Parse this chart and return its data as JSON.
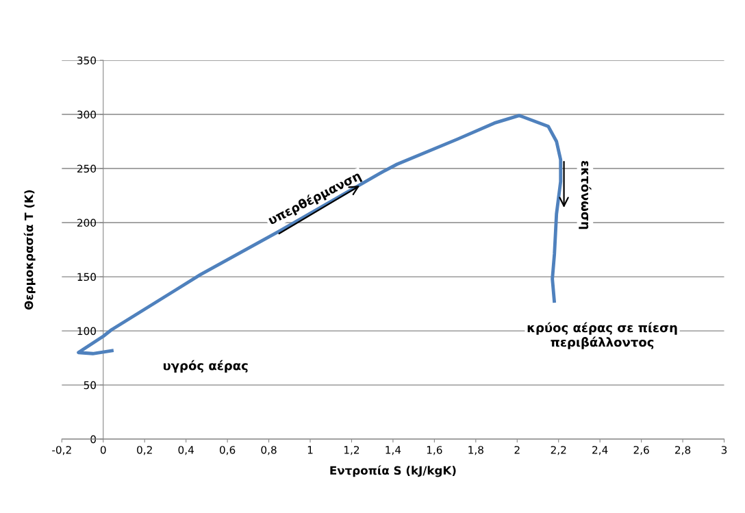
{
  "chart_data": {
    "type": "line",
    "xlabel": "Εντροπία S (kJ/kgK)",
    "ylabel": "Θερμοκρασία T (K)",
    "xlim": [
      -0.2,
      3
    ],
    "xticks": [
      {
        "value": -0.2,
        "label": "-0,2"
      },
      0,
      {
        "value": 0.2,
        "label": "0,2"
      },
      {
        "value": 0.4,
        "label": "0,4"
      },
      {
        "value": 0.6,
        "label": "0,6"
      },
      {
        "value": 0.8,
        "label": "0,8"
      },
      1,
      {
        "value": 1.2,
        "label": "1,2"
      },
      {
        "value": 1.4,
        "label": "1,4"
      },
      {
        "value": 1.6,
        "label": "1,6"
      },
      {
        "value": 1.8,
        "label": "1,8"
      },
      2,
      {
        "value": 2.2,
        "label": "2,2"
      },
      {
        "value": 2.4,
        "label": "2,4"
      },
      {
        "value": 2.6,
        "label": "2,6"
      },
      {
        "value": 2.8,
        "label": "2,8"
      },
      3
    ],
    "ylim": [
      0,
      350
    ],
    "yticks": [
      0,
      50,
      100,
      150,
      200,
      250,
      300,
      350
    ],
    "grid": "y",
    "marker": "none",
    "line_style": "solid",
    "series": [
      {
        "color": "#4f81bd",
        "x": [
          0.05,
          -0.05,
          -0.12,
          0,
          0.04,
          0.47,
          0.85,
          1.35,
          1.42,
          1.71,
          1.89,
          2.01,
          2.15,
          2.19,
          2.21,
          2.21,
          2.19,
          2.18,
          2.17,
          2.18
        ],
        "values": [
          82,
          79,
          80,
          95,
          101,
          152,
          192,
          247,
          254,
          277,
          292,
          299,
          289,
          275,
          258,
          238,
          208,
          171,
          148,
          126
        ]
      }
    ],
    "annotations": [
      "υπερθέρμανση",
      "εκτόνωση",
      "υγρός αέρας",
      "κρύος αέρας σε πίεση\nπεριβάλλοντος"
    ]
  }
}
